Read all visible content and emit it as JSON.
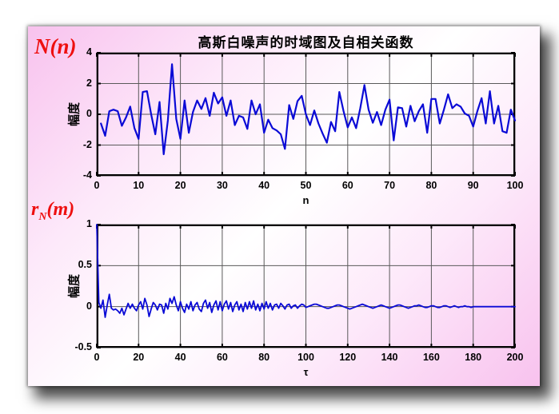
{
  "slide": {
    "title": "高斯白噪声的时域图及自相关函数"
  },
  "labels": {
    "top_signal": "N(n)",
    "autocorr_base": "r",
    "autocorr_sub": "N",
    "autocorr_arg": "(m)"
  },
  "colors": {
    "line": "#0a0ad6",
    "red_label": "#ee0f0f",
    "grid": "#5a5a5a",
    "axis": "#000000",
    "panel_pink": "#f8c2ee",
    "panel_center": "#ffffff"
  },
  "chart_data": [
    {
      "type": "line",
      "title": "高斯白噪声的时域图及自相关函数",
      "xlabel": "n",
      "ylabel": "幅度",
      "xlim": [
        0,
        100
      ],
      "ylim": [
        -4,
        4
      ],
      "xticks": [
        0,
        10,
        20,
        30,
        40,
        50,
        60,
        70,
        80,
        90,
        100
      ],
      "yticks": [
        -4,
        -2,
        0,
        2,
        4
      ],
      "grid": true,
      "legend": false,
      "x_start": 1,
      "x_step": 1,
      "values": [
        -0.6,
        -1.4,
        0.2,
        0.3,
        0.2,
        -0.75,
        -0.2,
        0.5,
        -0.9,
        -1.6,
        1.45,
        1.5,
        0.0,
        -1.3,
        0.8,
        -2.6,
        -0.4,
        3.25,
        -0.3,
        -1.6,
        0.9,
        -1.2,
        0.15,
        0.9,
        0.35,
        1.05,
        -0.1,
        1.4,
        0.7,
        1.1,
        -0.1,
        0.9,
        -0.7,
        -0.1,
        -0.2,
        -0.95,
        0.9,
        0.0,
        0.65,
        -1.2,
        -0.35,
        -0.9,
        -1.05,
        -1.3,
        -2.25,
        0.6,
        -0.3,
        0.85,
        1.2,
        0.0,
        -0.7,
        0.25,
        -0.6,
        -1.25,
        -1.85,
        -0.5,
        -1.1,
        1.45,
        0.2,
        -0.85,
        -0.2,
        -0.9,
        0.4,
        1.9,
        0.3,
        -0.55,
        0.15,
        -0.7,
        0.3,
        0.95,
        -1.7,
        0.45,
        0.4,
        -0.8,
        0.55,
        -0.45,
        0.2,
        0.65,
        -1.2,
        1.0,
        1.0,
        -0.6,
        0.3,
        1.3,
        0.4,
        0.65,
        0.5,
        0.05,
        -0.1,
        -0.8,
        0.2,
        1.05,
        -0.6,
        1.5,
        -0.6,
        0.55,
        -1.1,
        -1.2,
        0.3,
        -0.4
      ]
    },
    {
      "type": "line",
      "title": "",
      "xlabel": "τ",
      "ylabel": "幅度",
      "xlim": [
        0,
        200
      ],
      "ylim": [
        -0.5,
        1
      ],
      "xticks": [
        0,
        20,
        40,
        60,
        80,
        100,
        120,
        140,
        160,
        180,
        200
      ],
      "yticks": [
        -0.5,
        0,
        0.5,
        1
      ],
      "grid": true,
      "legend": false,
      "x_start": 0,
      "x_step": 1,
      "values": [
        1,
        0.05,
        -0.02,
        0.08,
        -0.13,
        0.02,
        0.15,
        -0.02,
        -0.04,
        -0.03,
        -0.05,
        -0.08,
        -0.02,
        -0.1,
        -0.03,
        0.04,
        -0.02,
        0.03,
        -0.02,
        -0.05,
        0.02,
        0.06,
        -0.03,
        0.1,
        0.02,
        -0.12,
        -0.03,
        0.05,
        0.02,
        -0.04,
        0.03,
        0.02,
        -0.08,
        0.04,
        -0.03,
        0.1,
        0.04,
        0.12,
        0.02,
        -0.05,
        0.06,
        -0.02,
        -0.07,
        0.03,
        -0.03,
        0.06,
        -0.05,
        0.02,
        0.05,
        -0.03,
        -0.06,
        0.04,
        0.08,
        -0.02,
        0.05,
        -0.07,
        0.02,
        0.07,
        -0.04,
        0.06,
        -0.05,
        0.03,
        0.07,
        -0.03,
        0.05,
        -0.06,
        0.02,
        0.06,
        -0.04,
        0.03,
        -0.06,
        0.05,
        -0.03,
        0.06,
        -0.02,
        0.07,
        -0.04,
        0.03,
        -0.05,
        0.04,
        -0.03,
        0.06,
        -0.02,
        0.04,
        -0.04,
        0.02,
        0.03,
        -0.02,
        0.04,
        0.01,
        -0.03,
        0.02,
        0.03,
        -0.02,
        0.01,
        0.02,
        -0.02,
        0.01,
        0.03,
        0.02,
        -0.01,
        0,
        0.01,
        0.02,
        0.03,
        0.03,
        0.02,
        0.01,
        0,
        -0.01,
        -0.02,
        -0.02,
        -0.01,
        0,
        0.01,
        0.02,
        0.02,
        0.01,
        0,
        -0.01,
        -0.02,
        -0.03,
        -0.02,
        -0.01,
        0,
        0.01,
        0.02,
        0.03,
        0.02,
        0.01,
        0,
        -0.01,
        -0.02,
        -0.01,
        0,
        0.01,
        0.02,
        0.01,
        0,
        -0.01,
        -0.02,
        -0.01,
        0,
        0.01,
        0.02,
        0.02,
        0.01,
        0,
        -0.01,
        -0.02,
        -0.01,
        0,
        0.01,
        0.01,
        0.02,
        0.01,
        0,
        -0.01,
        -0.01,
        0,
        0.01,
        0.01,
        0,
        -0.01,
        -0.01,
        0,
        0.01,
        0.01,
        0,
        -0.01,
        0,
        0.01,
        0,
        -0.01,
        0,
        0,
        0.01,
        0,
        0,
        -0.01,
        0,
        0,
        0,
        0,
        0,
        0,
        0,
        0,
        0,
        0,
        0,
        0,
        0,
        0,
        0,
        0,
        0,
        0,
        0,
        0,
        0
      ]
    }
  ]
}
